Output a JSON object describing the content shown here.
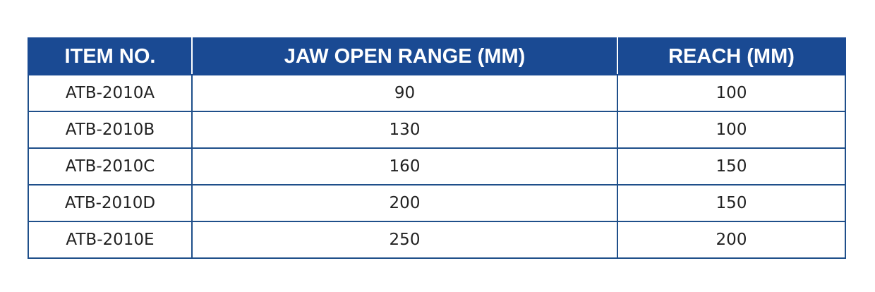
{
  "table": {
    "headers": [
      "ITEM NO.",
      "JAW OPEN RANGE (MM)",
      "REACH (MM)"
    ],
    "rows": [
      [
        "ATB-2010A",
        "90",
        "100"
      ],
      [
        "ATB-2010B",
        "130",
        "100"
      ],
      [
        "ATB-2010C",
        "160",
        "150"
      ],
      [
        "ATB-2010D",
        "200",
        "150"
      ],
      [
        "ATB-2010E",
        "250",
        "200"
      ]
    ]
  },
  "colors": {
    "header_background": "#1a4a93",
    "header_text": "#ffffff",
    "border": "#1f4f8a",
    "cell_text": "#222222"
  }
}
